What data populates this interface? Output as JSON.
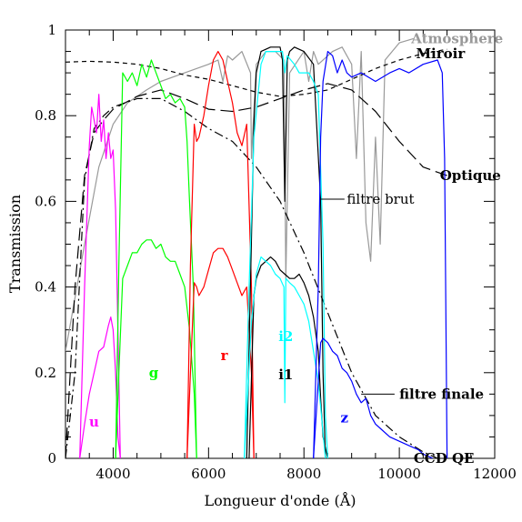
{
  "chart_data": {
    "type": "line",
    "xlabel": "Longueur d'onde (Å)",
    "ylabel": "Transmission",
    "xlim": [
      3000,
      12000
    ],
    "ylim": [
      0,
      1
    ],
    "x_ticks": [
      4000,
      6000,
      8000,
      10000,
      12000
    ],
    "x_tick_labels": [
      "4000",
      "6000",
      "8000",
      "10000",
      "12000"
    ],
    "y_ticks": [
      0,
      0.2,
      0.4,
      0.6,
      0.8,
      1
    ],
    "y_tick_labels": [
      "0",
      "0.2",
      "0.4",
      "0.6",
      "0.8",
      "1"
    ],
    "grid": false,
    "legend": "none",
    "series": [
      {
        "name": "Atmosphere",
        "color": "#999999",
        "dash": "solid",
        "x": [
          3000,
          3400,
          3700,
          4000,
          4300,
          4700,
          5000,
          5500,
          6000,
          6200,
          6300,
          6400,
          6500,
          6700,
          6880,
          6900,
          7000,
          7200,
          7400,
          7580,
          7620,
          7700,
          8000,
          8100,
          8200,
          8300,
          8600,
          8800,
          9000,
          9100,
          9200,
          9300,
          9400,
          9500,
          9600,
          9700,
          10000,
          10300
        ],
        "y": [
          0.25,
          0.5,
          0.68,
          0.78,
          0.83,
          0.86,
          0.88,
          0.9,
          0.92,
          0.93,
          0.88,
          0.94,
          0.93,
          0.95,
          0.9,
          0.7,
          0.92,
          0.95,
          0.95,
          0.93,
          0.42,
          0.9,
          0.95,
          0.88,
          0.95,
          0.92,
          0.95,
          0.96,
          0.92,
          0.7,
          0.95,
          0.55,
          0.46,
          0.75,
          0.5,
          0.93,
          0.97,
          0.98
        ]
      },
      {
        "name": "Miroir",
        "color": "#000000",
        "dash": "5,4",
        "x": [
          3000,
          3500,
          4000,
          4500,
          5000,
          5500,
          6000,
          6500,
          7000,
          7500,
          8000,
          8500,
          9000,
          9500,
          10000,
          10500,
          11000
        ],
        "y": [
          0.925,
          0.927,
          0.925,
          0.92,
          0.91,
          0.895,
          0.885,
          0.87,
          0.855,
          0.845,
          0.85,
          0.86,
          0.885,
          0.91,
          0.93,
          0.945,
          0.955
        ]
      },
      {
        "name": "Optique",
        "color": "#000000",
        "dash": "14,6",
        "x": [
          3000,
          3200,
          3400,
          3600,
          3800,
          4000,
          4500,
          5000,
          5500,
          6000,
          6500,
          7000,
          7500,
          8000,
          8500,
          9000,
          9500,
          10000,
          10500,
          11000
        ],
        "y": [
          0.0,
          0.4,
          0.66,
          0.76,
          0.79,
          0.815,
          0.845,
          0.86,
          0.84,
          0.815,
          0.81,
          0.82,
          0.84,
          0.86,
          0.875,
          0.86,
          0.81,
          0.74,
          0.68,
          0.66
        ]
      },
      {
        "name": "CCD QE",
        "color": "#000000",
        "dash": "10,4,2,4",
        "x": [
          3000,
          3200,
          3400,
          3600,
          3800,
          4000,
          4500,
          5000,
          5500,
          6000,
          6500,
          7000,
          7500,
          8000,
          8500,
          9000,
          9500,
          10000,
          10500,
          10800
        ],
        "y": [
          0.0,
          0.2,
          0.65,
          0.77,
          0.8,
          0.82,
          0.84,
          0.84,
          0.81,
          0.77,
          0.74,
          0.68,
          0.6,
          0.48,
          0.34,
          0.2,
          0.1,
          0.05,
          0.015,
          0.0
        ]
      },
      {
        "name": "u brut",
        "color": "#ff00ff",
        "dash": "solid",
        "x": [
          3300,
          3400,
          3500,
          3550,
          3650,
          3700,
          3750,
          3800,
          3850,
          3900,
          3950,
          4000,
          4050,
          4100,
          4150
        ],
        "y": [
          0.0,
          0.4,
          0.73,
          0.82,
          0.76,
          0.85,
          0.74,
          0.79,
          0.7,
          0.76,
          0.7,
          0.72,
          0.58,
          0.3,
          0.0
        ]
      },
      {
        "name": "u",
        "color": "#ff00ff",
        "dash": "solid",
        "x": [
          3300,
          3400,
          3500,
          3600,
          3700,
          3800,
          3900,
          3950,
          4000,
          4050,
          4100,
          4150
        ],
        "y": [
          0.0,
          0.08,
          0.15,
          0.2,
          0.25,
          0.26,
          0.31,
          0.33,
          0.3,
          0.2,
          0.05,
          0.0
        ]
      },
      {
        "name": "g brut",
        "color": "#00ff00",
        "dash": "solid",
        "x": [
          4050,
          4120,
          4200,
          4300,
          4400,
          4500,
          4600,
          4700,
          4800,
          4900,
          5000,
          5100,
          5200,
          5300,
          5400,
          5500,
          5550,
          5600,
          5680,
          5750
        ],
        "y": [
          0.0,
          0.45,
          0.9,
          0.88,
          0.9,
          0.87,
          0.92,
          0.89,
          0.93,
          0.9,
          0.87,
          0.84,
          0.85,
          0.83,
          0.84,
          0.82,
          0.74,
          0.6,
          0.4,
          0.0
        ]
      },
      {
        "name": "g",
        "color": "#00ff00",
        "dash": "solid",
        "x": [
          4050,
          4120,
          4200,
          4300,
          4400,
          4500,
          4600,
          4700,
          4800,
          4900,
          5000,
          5100,
          5200,
          5300,
          5400,
          5500,
          5600,
          5700,
          5750
        ],
        "y": [
          0.0,
          0.2,
          0.42,
          0.45,
          0.48,
          0.48,
          0.5,
          0.51,
          0.51,
          0.49,
          0.5,
          0.47,
          0.46,
          0.46,
          0.43,
          0.4,
          0.3,
          0.15,
          0.0
        ]
      },
      {
        "name": "r brut",
        "color": "#ff0000",
        "dash": "solid",
        "x": [
          5550,
          5620,
          5700,
          5750,
          5800,
          5900,
          6000,
          6100,
          6200,
          6300,
          6400,
          6500,
          6600,
          6700,
          6800,
          6900,
          6950
        ],
        "y": [
          0.0,
          0.45,
          0.78,
          0.74,
          0.75,
          0.8,
          0.87,
          0.93,
          0.95,
          0.93,
          0.88,
          0.83,
          0.76,
          0.73,
          0.78,
          0.4,
          0.0
        ]
      },
      {
        "name": "r",
        "color": "#ff0000",
        "dash": "solid",
        "x": [
          5550,
          5620,
          5700,
          5750,
          5800,
          5900,
          6000,
          6100,
          6200,
          6300,
          6400,
          6500,
          6600,
          6700,
          6800,
          6900,
          6950
        ],
        "y": [
          0.0,
          0.2,
          0.41,
          0.4,
          0.38,
          0.4,
          0.44,
          0.48,
          0.49,
          0.49,
          0.47,
          0.44,
          0.41,
          0.38,
          0.4,
          0.2,
          0.0
        ]
      },
      {
        "name": "i1 brut",
        "color": "#000000",
        "dash": "solid",
        "x": [
          6800,
          6950,
          7000,
          7100,
          7300,
          7500,
          7550,
          7600,
          7650,
          7700,
          7800,
          8000,
          8200,
          8350,
          8400,
          8450
        ],
        "y": [
          0.0,
          0.78,
          0.9,
          0.95,
          0.96,
          0.96,
          0.93,
          0.6,
          0.93,
          0.95,
          0.96,
          0.95,
          0.92,
          0.6,
          0.2,
          0.0
        ]
      },
      {
        "name": "i1",
        "color": "#000000",
        "dash": "solid",
        "x": [
          6850,
          6950,
          7000,
          7100,
          7200,
          7300,
          7400,
          7500,
          7600,
          7700,
          7800,
          7900,
          8000,
          8100,
          8200,
          8300,
          8350,
          8400,
          8500
        ],
        "y": [
          0.0,
          0.38,
          0.42,
          0.45,
          0.46,
          0.47,
          0.46,
          0.44,
          0.43,
          0.42,
          0.42,
          0.43,
          0.41,
          0.38,
          0.33,
          0.25,
          0.14,
          0.05,
          0.0
        ]
      },
      {
        "name": "i2 brut",
        "color": "#00ffff",
        "dash": "solid",
        "x": [
          6750,
          6850,
          6950,
          7100,
          7200,
          7400,
          7550,
          7600,
          7650,
          7800,
          7900,
          8100,
          8200,
          8300,
          8400,
          8450,
          8500
        ],
        "y": [
          0.0,
          0.4,
          0.75,
          0.92,
          0.95,
          0.95,
          0.95,
          0.9,
          0.94,
          0.92,
          0.9,
          0.9,
          0.88,
          0.85,
          0.5,
          0.1,
          0.0
        ]
      },
      {
        "name": "i2",
        "color": "#00ffff",
        "dash": "solid",
        "x": [
          6750,
          6900,
          7000,
          7100,
          7200,
          7300,
          7400,
          7500,
          7580,
          7600,
          7620,
          7700,
          7800,
          7900,
          8000,
          8100,
          8200,
          8300,
          8400,
          8450
        ],
        "y": [
          0.0,
          0.32,
          0.43,
          0.47,
          0.46,
          0.45,
          0.43,
          0.42,
          0.4,
          0.13,
          0.42,
          0.41,
          0.4,
          0.38,
          0.36,
          0.32,
          0.25,
          0.18,
          0.06,
          0.0
        ]
      },
      {
        "name": "z brut",
        "color": "#0000ff",
        "dash": "solid",
        "x": [
          8200,
          8300,
          8350,
          8400,
          8500,
          8600,
          8700,
          8800,
          8900,
          9000,
          9200,
          9500,
          9800,
          10000,
          10200,
          10500,
          10800,
          10900,
          10950,
          11000
        ],
        "y": [
          0.0,
          0.4,
          0.75,
          0.88,
          0.95,
          0.94,
          0.9,
          0.93,
          0.9,
          0.89,
          0.9,
          0.88,
          0.9,
          0.91,
          0.9,
          0.92,
          0.93,
          0.9,
          0.7,
          0.0
        ]
      },
      {
        "name": "z",
        "color": "#0000ff",
        "dash": "solid",
        "x": [
          8200,
          8300,
          8350,
          8400,
          8500,
          8600,
          8700,
          8800,
          8900,
          9000,
          9100,
          9200,
          9300,
          9400,
          9500,
          9600,
          9800,
          10000,
          10200,
          10400,
          10500,
          10600,
          10700
        ],
        "y": [
          0.0,
          0.18,
          0.27,
          0.28,
          0.27,
          0.25,
          0.24,
          0.21,
          0.2,
          0.18,
          0.15,
          0.13,
          0.14,
          0.1,
          0.08,
          0.07,
          0.05,
          0.04,
          0.03,
          0.02,
          0.01,
          0.005,
          0.0
        ]
      }
    ],
    "annotations": [
      {
        "text": "Atmosphere",
        "color": "#999999",
        "x": 10250,
        "y": 0.98,
        "align": "start",
        "style": "label"
      },
      {
        "text": "Miroir",
        "color": "#000000",
        "x": 10350,
        "y": 0.945,
        "align": "start",
        "style": "label"
      },
      {
        "text": "Optique",
        "color": "#000000",
        "x": 10850,
        "y": 0.66,
        "align": "start",
        "style": "label"
      },
      {
        "text": "filtre brut",
        "color": "#000000",
        "x": 8900,
        "y": 0.605,
        "align": "start",
        "style": "text"
      },
      {
        "text": "filtre finale",
        "color": "#000000",
        "x": 10000,
        "y": 0.15,
        "align": "start",
        "style": "label"
      },
      {
        "text": "CCD QE",
        "color": "#000000",
        "x": 10300,
        "y": 0.0,
        "align": "start",
        "style": "label"
      },
      {
        "text": "u",
        "color": "#ff00ff",
        "x": 3600,
        "y": 0.085,
        "align": "middle",
        "style": "label"
      },
      {
        "text": "g",
        "color": "#00ff00",
        "x": 4850,
        "y": 0.2,
        "align": "middle",
        "style": "label"
      },
      {
        "text": "r",
        "color": "#ff0000",
        "x": 6330,
        "y": 0.24,
        "align": "middle",
        "style": "label"
      },
      {
        "text": "i2",
        "color": "#00ffff",
        "x": 7620,
        "y": 0.285,
        "align": "middle",
        "style": "label"
      },
      {
        "text": "i1",
        "color": "#000000",
        "x": 7620,
        "y": 0.195,
        "align": "middle",
        "style": "label"
      },
      {
        "text": "z",
        "color": "#0000ff",
        "x": 8850,
        "y": 0.095,
        "align": "middle",
        "style": "label"
      }
    ]
  }
}
